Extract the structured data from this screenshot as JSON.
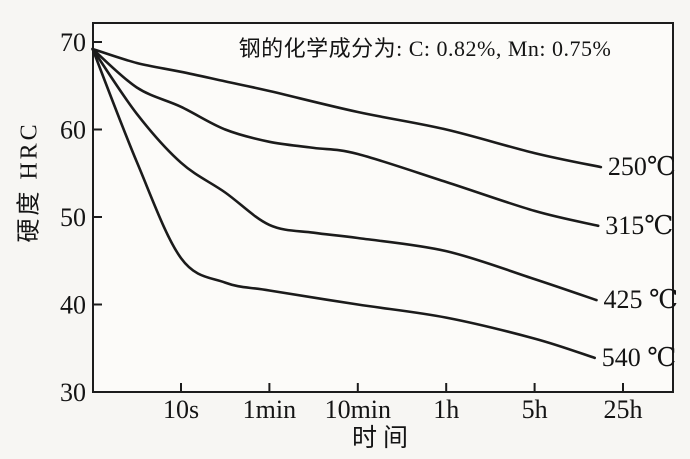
{
  "chart_data": {
    "type": "line",
    "title": "钢的化学成分为: C: 0.82%, Mn: 0.75%",
    "xlabel": "时间",
    "ylabel": "硬度 HRC",
    "x_categories": [
      "10s",
      "1min",
      "10min",
      "1h",
      "5h",
      "25h"
    ],
    "x_scale": "log-time, ticks equally spaced",
    "x_unit": "tick index: 0=10s, 1=1min, 2=10min, 3=1h, 4=5h, 5=25h; -1=axis left edge",
    "y_ticks": [
      30,
      40,
      50,
      60,
      70
    ],
    "ylim": [
      30,
      72.2
    ],
    "grid": false,
    "legend_position": "labels at right end of each curve",
    "series": [
      {
        "name": "250C",
        "label": "250℃",
        "tempering_temperature_c": 250,
        "points": [
          [
            -1,
            69.2
          ],
          [
            -0.5,
            67.6
          ],
          [
            0,
            66.6
          ],
          [
            0.5,
            65.5
          ],
          [
            1,
            64.4
          ],
          [
            2,
            62.0
          ],
          [
            3,
            60.0
          ],
          [
            4,
            57.3
          ],
          [
            4.75,
            55.7
          ]
        ]
      },
      {
        "name": "315C",
        "label": "315℃",
        "tempering_temperature_c": 315,
        "points": [
          [
            -1,
            69.2
          ],
          [
            -0.5,
            64.8
          ],
          [
            0,
            62.6
          ],
          [
            0.5,
            60.0
          ],
          [
            1,
            58.6
          ],
          [
            1.5,
            57.9
          ],
          [
            2,
            57.2
          ],
          [
            3,
            54.0
          ],
          [
            4,
            50.7
          ],
          [
            4.72,
            49.0
          ]
        ]
      },
      {
        "name": "425C",
        "label": "425 ℃",
        "tempering_temperature_c": 425,
        "points": [
          [
            -1,
            69.2
          ],
          [
            -0.5,
            61.8
          ],
          [
            0,
            56.2
          ],
          [
            0.5,
            52.8
          ],
          [
            1,
            49.1
          ],
          [
            1.5,
            48.2
          ],
          [
            2,
            47.6
          ],
          [
            3,
            46.1
          ],
          [
            4,
            42.9
          ],
          [
            4.7,
            40.5
          ]
        ]
      },
      {
        "name": "540C",
        "label": "540 ℃",
        "tempering_temperature_c": 540,
        "points": [
          [
            -1,
            69.2
          ],
          [
            -0.5,
            56.3
          ],
          [
            0,
            45.3
          ],
          [
            0.5,
            42.5
          ],
          [
            1,
            41.6
          ],
          [
            2,
            40.0
          ],
          [
            3,
            38.5
          ],
          [
            4,
            36.1
          ],
          [
            4.68,
            33.9
          ]
        ]
      }
    ],
    "colors": {
      "line": "#1b1b1b",
      "axis": "#1c1c1c",
      "text": "#141414",
      "background": "#f7f6f3",
      "plot_background": "#fcfbf9"
    }
  }
}
